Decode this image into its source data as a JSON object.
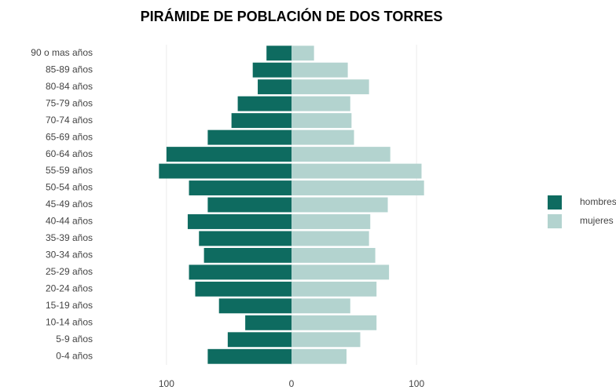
{
  "chart_data": {
    "type": "pyramid",
    "title": "PIRÁMIDE DE POBLACIÓN DE  DOS TORRES",
    "categories": [
      "90 o mas años",
      "85-89 años",
      "80-84 años",
      "75-79 años",
      "70-74 años",
      "65-69 años",
      "60-64 años",
      "55-59 años",
      "50-54 años",
      "45-49 años",
      "40-44 años",
      "35-39 años",
      "30-34 años",
      "25-29 años",
      "20-24 años",
      "15-19 años",
      "10-14 años",
      "5-9 años",
      "0-4 años"
    ],
    "series": [
      {
        "name": "hombres",
        "color": "#0e6b60",
        "values": [
          -20,
          -31,
          -27,
          -43,
          -48,
          -67,
          -100,
          -106,
          -82,
          -67,
          -83,
          -74,
          -70,
          -82,
          -77,
          -58,
          -37,
          -51,
          -67
        ]
      },
      {
        "name": "mujeres",
        "color": "#b3d3cf",
        "values": [
          18,
          45,
          62,
          47,
          48,
          50,
          79,
          104,
          106,
          77,
          63,
          62,
          67,
          78,
          68,
          47,
          68,
          55,
          44
        ]
      }
    ],
    "xlim": [
      -115,
      115
    ],
    "xticks": [
      {
        "value": -100,
        "label": "100"
      },
      0,
      100
    ],
    "grid": true,
    "legend": "right"
  }
}
